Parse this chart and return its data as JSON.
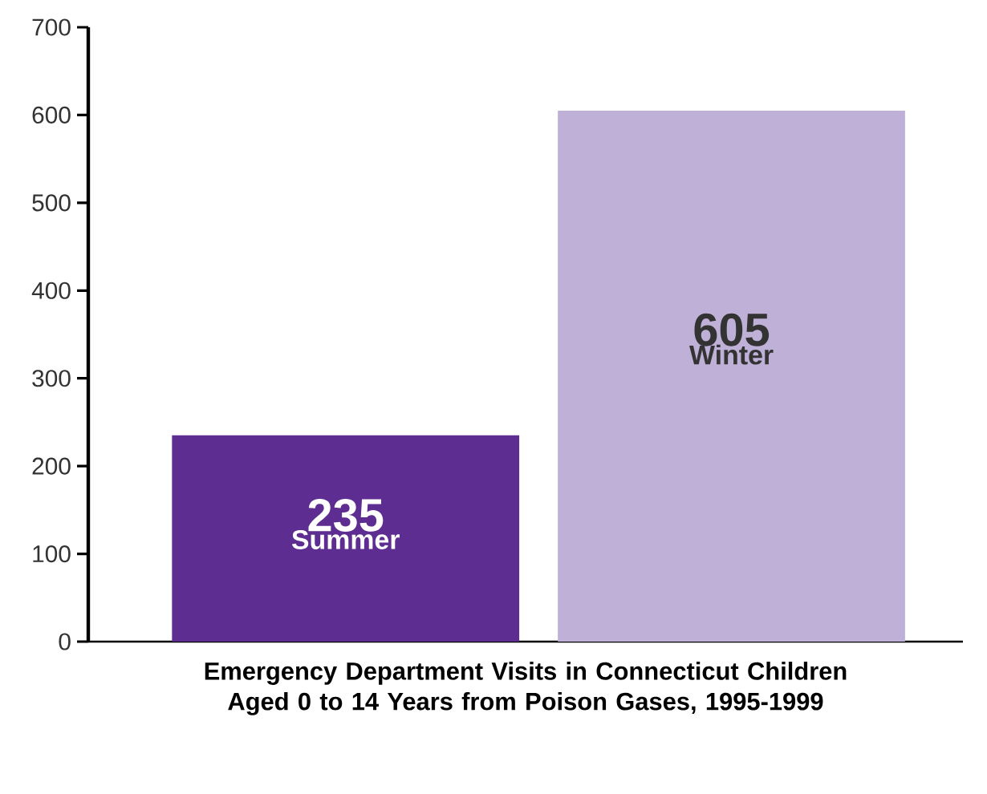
{
  "chart_data": {
    "type": "bar",
    "xlabel": "Emergency Department Visits in Connecticut Children Aged 0 to 14 Years from Poison Gases, 1995-1999",
    "categories": [
      "Summer",
      "Winter"
    ],
    "values": [
      235,
      605
    ],
    "colors": [
      "#5e2d91",
      "#bfb0d7"
    ],
    "ylim": [
      0,
      700
    ],
    "yticks": [
      0,
      100,
      200,
      300,
      400,
      500,
      600,
      700
    ],
    "data_labels": true,
    "grid": false
  }
}
